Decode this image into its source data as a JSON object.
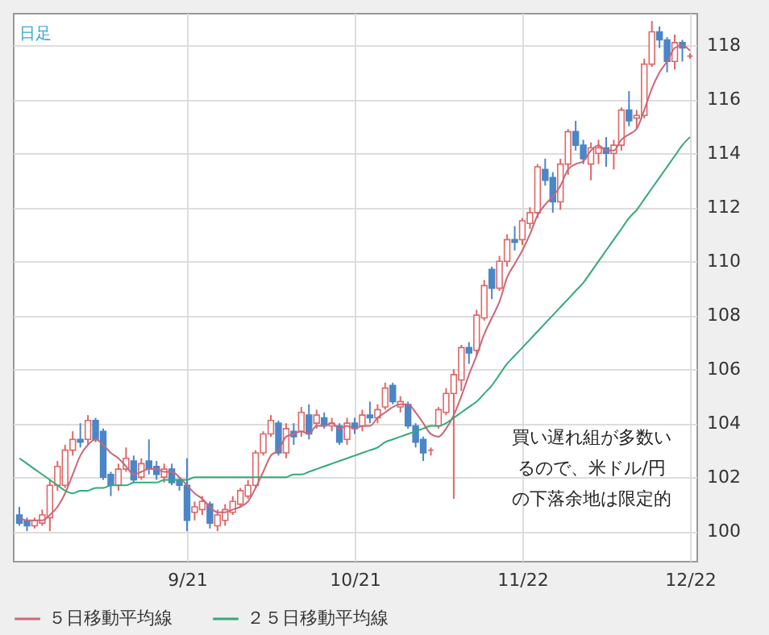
{
  "chart_data": {
    "type": "candlestick",
    "title": "日足",
    "categories": [
      null,
      null,
      null,
      null,
      null,
      null,
      null,
      null,
      null,
      null,
      null,
      null,
      null,
      null,
      null,
      null,
      null,
      null,
      null,
      null,
      null,
      null,
      "9/21",
      null,
      null,
      null,
      null,
      null,
      null,
      null,
      null,
      null,
      null,
      null,
      null,
      null,
      null,
      null,
      null,
      null,
      null,
      null,
      null,
      null,
      "10/21",
      null,
      null,
      null,
      null,
      null,
      null,
      null,
      null,
      null,
      null,
      null,
      null,
      null,
      null,
      null,
      null,
      null,
      null,
      null,
      null,
      null,
      "11/22",
      null,
      null,
      null,
      null,
      null,
      null,
      null,
      null,
      null,
      null,
      null,
      null,
      null,
      null,
      null,
      null,
      null,
      null,
      null,
      null,
      null,
      "12/22"
    ],
    "ohlc": [
      [
        100.6,
        100.9,
        100.2,
        100.3
      ],
      [
        100.4,
        100.5,
        100.0,
        100.2
      ],
      [
        100.2,
        100.5,
        100.1,
        100.4
      ],
      [
        100.3,
        100.8,
        100.2,
        100.6
      ],
      [
        100.5,
        101.9,
        100.0,
        101.7
      ],
      [
        101.7,
        102.6,
        101.5,
        102.4
      ],
      [
        101.7,
        103.2,
        101.6,
        103.0
      ],
      [
        103.0,
        103.7,
        102.8,
        103.4
      ],
      [
        103.4,
        104.0,
        103.1,
        103.3
      ],
      [
        103.4,
        104.3,
        103.2,
        104.1
      ],
      [
        104.1,
        104.2,
        103.3,
        103.4
      ],
      [
        103.7,
        103.8,
        101.9,
        102.0
      ],
      [
        102.1,
        102.2,
        101.3,
        101.7
      ],
      [
        101.7,
        102.5,
        101.5,
        102.3
      ],
      [
        102.3,
        103.1,
        102.2,
        102.7
      ],
      [
        102.6,
        102.8,
        101.8,
        101.9
      ],
      [
        102.0,
        102.7,
        101.9,
        102.5
      ],
      [
        102.6,
        103.4,
        102.1,
        102.3
      ],
      [
        102.4,
        102.6,
        101.9,
        102.1
      ],
      [
        102.0,
        102.5,
        101.8,
        102.3
      ],
      [
        102.3,
        102.5,
        101.7,
        101.8
      ],
      [
        101.9,
        102.0,
        101.5,
        101.7
      ],
      [
        101.7,
        102.7,
        100.0,
        100.4
      ],
      [
        100.7,
        101.1,
        100.4,
        100.9
      ],
      [
        100.8,
        101.3,
        100.6,
        101.1
      ],
      [
        101.0,
        101.1,
        100.1,
        100.3
      ],
      [
        100.2,
        100.8,
        100.0,
        100.6
      ],
      [
        100.4,
        101.0,
        100.2,
        100.8
      ],
      [
        100.7,
        101.3,
        100.6,
        101.1
      ],
      [
        101.0,
        101.6,
        100.9,
        101.5
      ],
      [
        101.3,
        101.9,
        101.2,
        101.7
      ],
      [
        101.7,
        103.0,
        101.6,
        102.9
      ],
      [
        102.9,
        103.7,
        102.8,
        103.6
      ],
      [
        103.6,
        104.3,
        103.5,
        104.1
      ],
      [
        104.0,
        104.1,
        102.8,
        102.9
      ],
      [
        102.9,
        104.0,
        102.7,
        103.8
      ],
      [
        103.7,
        104.0,
        103.2,
        103.5
      ],
      [
        103.7,
        104.6,
        103.5,
        104.4
      ],
      [
        104.3,
        104.7,
        103.4,
        103.6
      ],
      [
        104.0,
        104.5,
        103.8,
        104.3
      ],
      [
        104.2,
        104.4,
        103.8,
        103.9
      ],
      [
        103.9,
        104.2,
        103.7,
        104.0
      ],
      [
        103.9,
        104.0,
        103.2,
        103.3
      ],
      [
        103.4,
        104.2,
        103.2,
        104.0
      ],
      [
        104.0,
        104.2,
        103.6,
        103.8
      ],
      [
        103.9,
        104.5,
        103.7,
        104.3
      ],
      [
        104.3,
        104.8,
        104.0,
        104.2
      ],
      [
        104.2,
        104.7,
        104.0,
        104.5
      ],
      [
        104.6,
        105.5,
        104.5,
        105.3
      ],
      [
        105.4,
        105.5,
        104.7,
        104.8
      ],
      [
        104.6,
        105.0,
        104.4,
        104.8
      ],
      [
        104.7,
        104.8,
        103.8,
        103.9
      ],
      [
        103.9,
        104.0,
        103.1,
        103.3
      ],
      [
        103.4,
        103.5,
        102.6,
        102.9
      ],
      [
        103.0,
        103.1,
        102.8,
        103.0
      ],
      [
        103.9,
        104.6,
        103.8,
        104.5
      ],
      [
        104.4,
        105.3,
        104.3,
        105.1
      ],
      [
        105.1,
        106.0,
        101.2,
        105.8
      ],
      [
        105.6,
        106.9,
        105.2,
        106.8
      ],
      [
        106.8,
        107.0,
        106.2,
        106.6
      ],
      [
        106.7,
        108.2,
        106.5,
        108.0
      ],
      [
        107.9,
        109.3,
        107.8,
        109.1
      ],
      [
        109.7,
        109.8,
        108.6,
        109.0
      ],
      [
        109.0,
        110.2,
        108.9,
        110.0
      ],
      [
        110.0,
        111.0,
        109.8,
        110.8
      ],
      [
        110.8,
        111.3,
        110.4,
        110.7
      ],
      [
        110.8,
        111.6,
        110.6,
        111.5
      ],
      [
        111.4,
        112.0,
        111.2,
        111.8
      ],
      [
        111.8,
        113.6,
        111.6,
        113.5
      ],
      [
        113.4,
        113.8,
        112.8,
        113.0
      ],
      [
        113.1,
        113.3,
        111.8,
        112.2
      ],
      [
        112.2,
        113.8,
        111.9,
        113.6
      ],
      [
        113.6,
        114.9,
        113.2,
        114.8
      ],
      [
        114.8,
        115.2,
        114.1,
        114.3
      ],
      [
        114.3,
        114.5,
        113.6,
        113.8
      ],
      [
        113.6,
        114.4,
        113.0,
        114.2
      ],
      [
        114.0,
        114.5,
        113.6,
        114.2
      ],
      [
        114.2,
        114.6,
        113.5,
        114.0
      ],
      [
        114.0,
        114.5,
        113.4,
        114.3
      ],
      [
        114.3,
        115.7,
        114.1,
        115.6
      ],
      [
        115.6,
        116.3,
        115.0,
        115.2
      ],
      [
        115.3,
        115.6,
        114.9,
        115.4
      ],
      [
        115.4,
        117.5,
        115.3,
        117.3
      ],
      [
        117.3,
        118.9,
        117.2,
        118.5
      ],
      [
        118.5,
        118.7,
        117.9,
        118.2
      ],
      [
        118.2,
        118.3,
        117.0,
        117.4
      ],
      [
        117.4,
        118.4,
        117.1,
        118.1
      ],
      [
        118.1,
        118.2,
        117.4,
        117.9
      ],
      [
        117.6,
        117.7,
        117.5,
        117.6
      ]
    ],
    "colors": [
      "#4a86c8",
      "#4a86c8",
      "#e06666",
      "#e06666",
      "#e06666",
      "#e06666",
      "#e06666",
      "#e06666",
      "#4a86c8",
      "#e06666",
      "#4a86c8",
      "#4a86c8",
      "#4a86c8",
      "#e06666",
      "#e06666",
      "#4a86c8",
      "#e06666",
      "#4a86c8",
      "#4a86c8",
      "#e06666",
      "#4a86c8",
      "#4a86c8",
      "#4a86c8",
      "#e06666",
      "#e06666",
      "#4a86c8",
      "#e06666",
      "#e06666",
      "#e06666",
      "#e06666",
      "#e06666",
      "#e06666",
      "#e06666",
      "#e06666",
      "#4a86c8",
      "#e06666",
      "#4a86c8",
      "#e06666",
      "#4a86c8",
      "#e06666",
      "#4a86c8",
      "#e06666",
      "#4a86c8",
      "#e06666",
      "#4a86c8",
      "#e06666",
      "#4a86c8",
      "#e06666",
      "#e06666",
      "#4a86c8",
      "#e06666",
      "#4a86c8",
      "#4a86c8",
      "#4a86c8",
      "#e06666",
      "#e06666",
      "#e06666",
      "#e06666",
      "#e06666",
      "#4a86c8",
      "#e06666",
      "#e06666",
      "#4a86c8",
      "#e06666",
      "#e06666",
      "#4a86c8",
      "#e06666",
      "#e06666",
      "#e06666",
      "#4a86c8",
      "#4a86c8",
      "#e06666",
      "#e06666",
      "#4a86c8",
      "#4a86c8",
      "#e06666",
      "#e06666",
      "#4a86c8",
      "#e06666",
      "#e06666",
      "#4a86c8",
      "#e06666",
      "#e06666",
      "#e06666",
      "#4a86c8",
      "#4a86c8",
      "#e06666",
      "#4a86c8",
      "#e06666"
    ],
    "series": [
      {
        "type": "line",
        "name": "５日移動平均線",
        "color": "#cc6677",
        "values": [
          100.5,
          100.4,
          100.4,
          100.4,
          100.6,
          100.9,
          101.4,
          102.1,
          102.8,
          103.2,
          103.4,
          103.2,
          102.9,
          102.7,
          102.4,
          102.1,
          102.2,
          102.3,
          102.3,
          102.2,
          102.2,
          102.0,
          101.7,
          101.4,
          101.2,
          100.9,
          100.7,
          100.7,
          100.8,
          100.9,
          101.1,
          101.6,
          102.2,
          102.8,
          103.0,
          103.5,
          103.6,
          103.7,
          103.6,
          103.9,
          103.9,
          104.0,
          103.8,
          103.9,
          103.8,
          103.9,
          103.9,
          104.2,
          104.4,
          104.6,
          104.7,
          104.7,
          104.4,
          104.0,
          103.6,
          103.5,
          103.8,
          104.3,
          105.0,
          105.8,
          106.5,
          107.3,
          107.9,
          108.5,
          109.4,
          109.9,
          110.4,
          111.0,
          111.7,
          112.1,
          112.4,
          112.8,
          113.4,
          113.6,
          113.7,
          114.1,
          114.3,
          114.1,
          114.1,
          114.5,
          114.7,
          114.9,
          115.6,
          116.4,
          117.0,
          117.4,
          117.9,
          118.0,
          117.8
        ]
      },
      {
        "type": "line",
        "name": "２５日移動平均線",
        "color": "#33aa77",
        "values": [
          102.7,
          102.5,
          102.3,
          102.1,
          101.9,
          101.7,
          101.5,
          101.4,
          101.5,
          101.5,
          101.6,
          101.6,
          101.7,
          101.7,
          101.7,
          101.8,
          101.8,
          101.8,
          101.8,
          101.9,
          101.9,
          101.9,
          101.9,
          102.0,
          102.0,
          102.0,
          102.0,
          102.0,
          102.0,
          102.0,
          102.0,
          102.0,
          102.0,
          102.0,
          102.0,
          102.0,
          102.1,
          102.1,
          102.2,
          102.3,
          102.4,
          102.5,
          102.6,
          102.7,
          102.8,
          102.9,
          103.0,
          103.1,
          103.3,
          103.4,
          103.5,
          103.6,
          103.7,
          103.8,
          103.9,
          103.9,
          104.0,
          104.2,
          104.4,
          104.6,
          104.8,
          105.1,
          105.4,
          105.8,
          106.2,
          106.5,
          106.8,
          107.1,
          107.4,
          107.7,
          108.0,
          108.3,
          108.6,
          108.9,
          109.2,
          109.6,
          110.0,
          110.4,
          110.8,
          111.2,
          111.6,
          111.9,
          112.3,
          112.7,
          113.1,
          113.5,
          113.9,
          114.3,
          114.6
        ]
      }
    ],
    "ylim": [
      98.9,
      119.2
    ],
    "yticks": [
      100,
      102,
      104,
      106,
      108,
      110,
      112,
      114,
      116,
      118
    ],
    "grid": true,
    "legend": "bottom",
    "annotations": [
      "買い遅れ組が多数いるので、米ドル/円の下落余地は限定的"
    ]
  }
}
